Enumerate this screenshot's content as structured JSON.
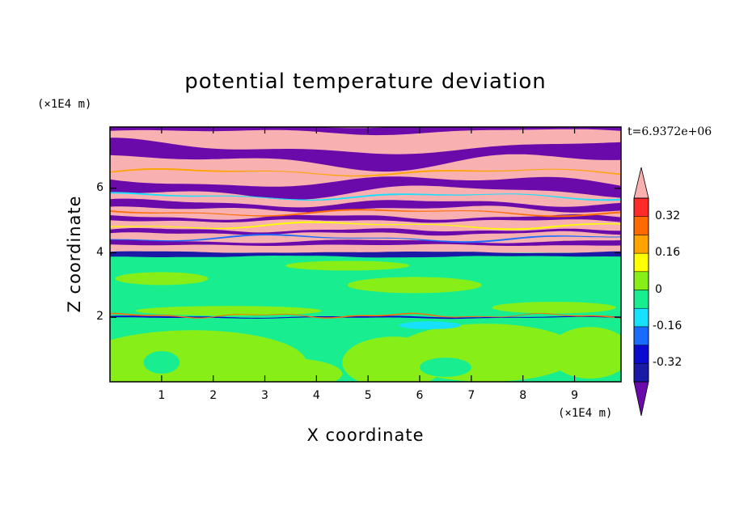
{
  "chart_data": {
    "type": "heatmap",
    "title": "potential temperature deviation",
    "xlabel": "X coordinate",
    "ylabel": "Z coordinate",
    "x_unit_label": "(×1E4 m)",
    "y_unit_label": "(×1E4 m)",
    "time_label": "t=6.9372e+06",
    "xlim": [
      0,
      9.9
    ],
    "ylim": [
      0,
      7.9
    ],
    "x_ticks": [
      "1",
      "2",
      "3",
      "4",
      "5",
      "6",
      "7",
      "8",
      "9"
    ],
    "y_ticks": [
      "2",
      "4",
      "6"
    ],
    "x_tick_values": [
      1,
      2,
      3,
      4,
      5,
      6,
      7,
      8,
      9
    ],
    "y_tick_values": [
      2,
      4,
      6
    ],
    "colorbar": {
      "labels": [
        "0.32",
        "0.16",
        "0",
        "-0.16",
        "-0.32"
      ],
      "label_values": [
        0.32,
        0.16,
        0,
        -0.16,
        -0.32
      ],
      "levels": [
        -0.4,
        -0.32,
        -0.24,
        -0.16,
        -0.08,
        0,
        0.08,
        0.16,
        0.24,
        0.32,
        0.4
      ],
      "colors_low_to_high": [
        "#6a0aaa",
        "#1a1aa6",
        "#0a0ad0",
        "#1a6bff",
        "#18e0ff",
        "#18ee90",
        "#88ee18",
        "#ffff00",
        "#ffa300",
        "#ff6a00",
        "#ff2a2a",
        "#f8b0b0"
      ],
      "extend": "both"
    },
    "field_regions": [
      {
        "name": "upper-layer",
        "z_range": [
          4.0,
          7.9
        ],
        "description": "alternating bands of pink (> 0.4) and purple (< -0.4)"
      },
      {
        "name": "interface",
        "z_range": [
          3.85,
          4.0
        ],
        "description": "dark blue band"
      },
      {
        "name": "lower-layer",
        "z_range": [
          0,
          3.85
        ],
        "description": "green values near 0 to 0.08"
      }
    ]
  }
}
